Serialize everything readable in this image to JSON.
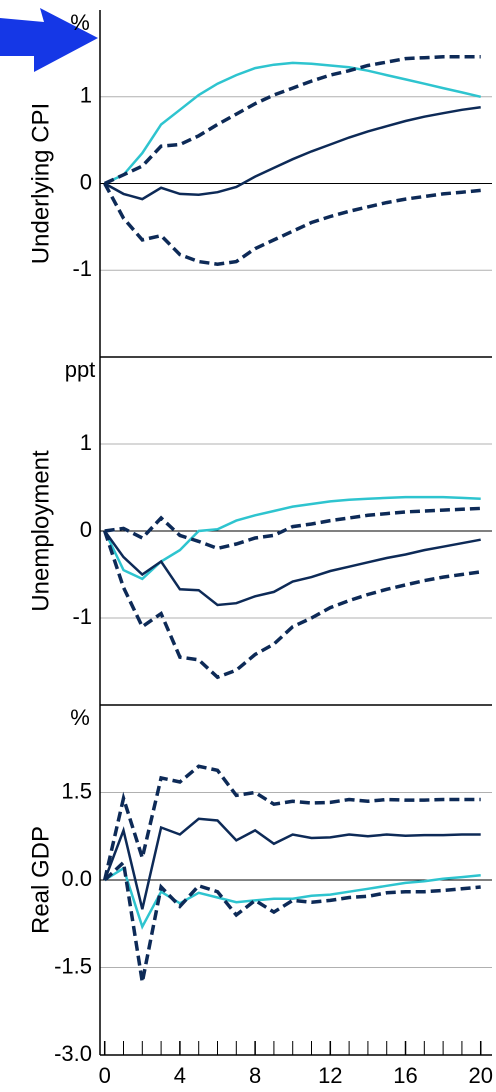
{
  "chart_data": [
    {
      "type": "line",
      "ylabel": "Underlying CPI",
      "unit": "%",
      "x": [
        0,
        1,
        2,
        3,
        4,
        5,
        6,
        7,
        8,
        9,
        10,
        11,
        12,
        13,
        14,
        15,
        16,
        17,
        18,
        19,
        20
      ],
      "xlim": [
        -0.25,
        20.6
      ],
      "ylim": [
        -2,
        2
      ],
      "yticks": [
        -1,
        0,
        1
      ],
      "grid": true,
      "series": [
        {
          "color": "#2ec4cf",
          "dash": false,
          "values": [
            0,
            0.1,
            0.35,
            0.68,
            0.85,
            1.02,
            1.15,
            1.25,
            1.33,
            1.37,
            1.39,
            1.38,
            1.36,
            1.34,
            1.3,
            1.25,
            1.2,
            1.15,
            1.1,
            1.05,
            1.0
          ]
        },
        {
          "color": "#0d2a57",
          "dash": true,
          "values": [
            0,
            0.1,
            0.2,
            0.43,
            0.45,
            0.55,
            0.68,
            0.8,
            0.92,
            1.02,
            1.1,
            1.18,
            1.25,
            1.3,
            1.36,
            1.4,
            1.44,
            1.45,
            1.46,
            1.46,
            1.46
          ]
        },
        {
          "color": "#0d2a57",
          "dash": false,
          "values": [
            0,
            -0.12,
            -0.18,
            -0.05,
            -0.12,
            -0.13,
            -0.1,
            -0.04,
            0.08,
            0.18,
            0.28,
            0.37,
            0.45,
            0.53,
            0.6,
            0.66,
            0.72,
            0.77,
            0.81,
            0.85,
            0.88
          ]
        },
        {
          "color": "#0d2a57",
          "dash": true,
          "values": [
            0,
            -0.4,
            -0.65,
            -0.6,
            -0.82,
            -0.9,
            -0.93,
            -0.9,
            -0.75,
            -0.65,
            -0.55,
            -0.45,
            -0.38,
            -0.32,
            -0.27,
            -0.22,
            -0.18,
            -0.15,
            -0.12,
            -0.1,
            -0.08
          ]
        }
      ]
    },
    {
      "type": "line",
      "ylabel": "Unemployment",
      "unit": "ppt",
      "x": [
        0,
        1,
        2,
        3,
        4,
        5,
        6,
        7,
        8,
        9,
        10,
        11,
        12,
        13,
        14,
        15,
        16,
        17,
        18,
        19,
        20
      ],
      "xlim": [
        -0.25,
        20.6
      ],
      "ylim": [
        -2,
        2
      ],
      "yticks": [
        -1,
        0,
        1
      ],
      "grid": true,
      "series": [
        {
          "color": "#2ec4cf",
          "dash": false,
          "values": [
            0,
            -0.45,
            -0.55,
            -0.35,
            -0.22,
            0.0,
            0.02,
            0.12,
            0.18,
            0.23,
            0.28,
            0.31,
            0.34,
            0.36,
            0.37,
            0.38,
            0.39,
            0.39,
            0.39,
            0.38,
            0.37
          ]
        },
        {
          "color": "#0d2a57",
          "dash": true,
          "values": [
            0,
            0.03,
            -0.08,
            0.15,
            -0.05,
            -0.12,
            -0.2,
            -0.15,
            -0.08,
            -0.05,
            0.05,
            0.08,
            0.12,
            0.15,
            0.18,
            0.2,
            0.22,
            0.23,
            0.24,
            0.25,
            0.26
          ]
        },
        {
          "color": "#0d2a57",
          "dash": false,
          "values": [
            0,
            -0.3,
            -0.5,
            -0.35,
            -0.67,
            -0.68,
            -0.85,
            -0.83,
            -0.75,
            -0.7,
            -0.58,
            -0.53,
            -0.46,
            -0.41,
            -0.36,
            -0.31,
            -0.27,
            -0.22,
            -0.18,
            -0.14,
            -0.1
          ]
        },
        {
          "color": "#0d2a57",
          "dash": true,
          "values": [
            0,
            -0.65,
            -1.1,
            -0.95,
            -1.45,
            -1.48,
            -1.68,
            -1.6,
            -1.42,
            -1.3,
            -1.1,
            -1.0,
            -0.88,
            -0.8,
            -0.73,
            -0.67,
            -0.62,
            -0.57,
            -0.53,
            -0.5,
            -0.47
          ]
        }
      ]
    },
    {
      "type": "line",
      "ylabel": "Real GDP",
      "unit": "%",
      "x": [
        0,
        1,
        2,
        3,
        4,
        5,
        6,
        7,
        8,
        9,
        10,
        11,
        12,
        13,
        14,
        15,
        16,
        17,
        18,
        19,
        20
      ],
      "xlim": [
        -0.25,
        20.6
      ],
      "xticks": [
        0,
        4,
        8,
        12,
        16,
        20
      ],
      "ylim": [
        -3,
        3
      ],
      "grid": true,
      "yticks": [
        {
          "value": -3,
          "label": "-3.0"
        },
        {
          "value": -1.5,
          "label": "-1.5"
        },
        {
          "value": 0,
          "label": "0.0"
        },
        {
          "value": 1.5,
          "label": "1.5"
        }
      ],
      "series": [
        {
          "color": "#0d2a57",
          "dash": true,
          "values": [
            0,
            1.4,
            0.38,
            1.75,
            1.68,
            1.95,
            1.88,
            1.45,
            1.5,
            1.3,
            1.35,
            1.32,
            1.33,
            1.38,
            1.35,
            1.38,
            1.37,
            1.37,
            1.38,
            1.38,
            1.38
          ]
        },
        {
          "color": "#0d2a57",
          "dash": false,
          "values": [
            0,
            0.85,
            -0.5,
            0.9,
            0.78,
            1.05,
            1.02,
            0.68,
            0.85,
            0.62,
            0.78,
            0.72,
            0.73,
            0.78,
            0.75,
            0.78,
            0.76,
            0.77,
            0.77,
            0.78,
            0.78
          ]
        },
        {
          "color": "#2ec4cf",
          "dash": false,
          "values": [
            0,
            0.2,
            -0.8,
            -0.2,
            -0.4,
            -0.22,
            -0.3,
            -0.38,
            -0.35,
            -0.32,
            -0.32,
            -0.27,
            -0.25,
            -0.2,
            -0.15,
            -0.1,
            -0.05,
            -0.02,
            0.02,
            0.05,
            0.08
          ]
        },
        {
          "color": "#0d2a57",
          "dash": true,
          "values": [
            0,
            0.3,
            -1.75,
            -0.12,
            -0.45,
            -0.1,
            -0.2,
            -0.6,
            -0.35,
            -0.55,
            -0.35,
            -0.38,
            -0.35,
            -0.3,
            -0.28,
            -0.22,
            -0.2,
            -0.2,
            -0.18,
            -0.15,
            -0.12
          ]
        }
      ]
    }
  ]
}
